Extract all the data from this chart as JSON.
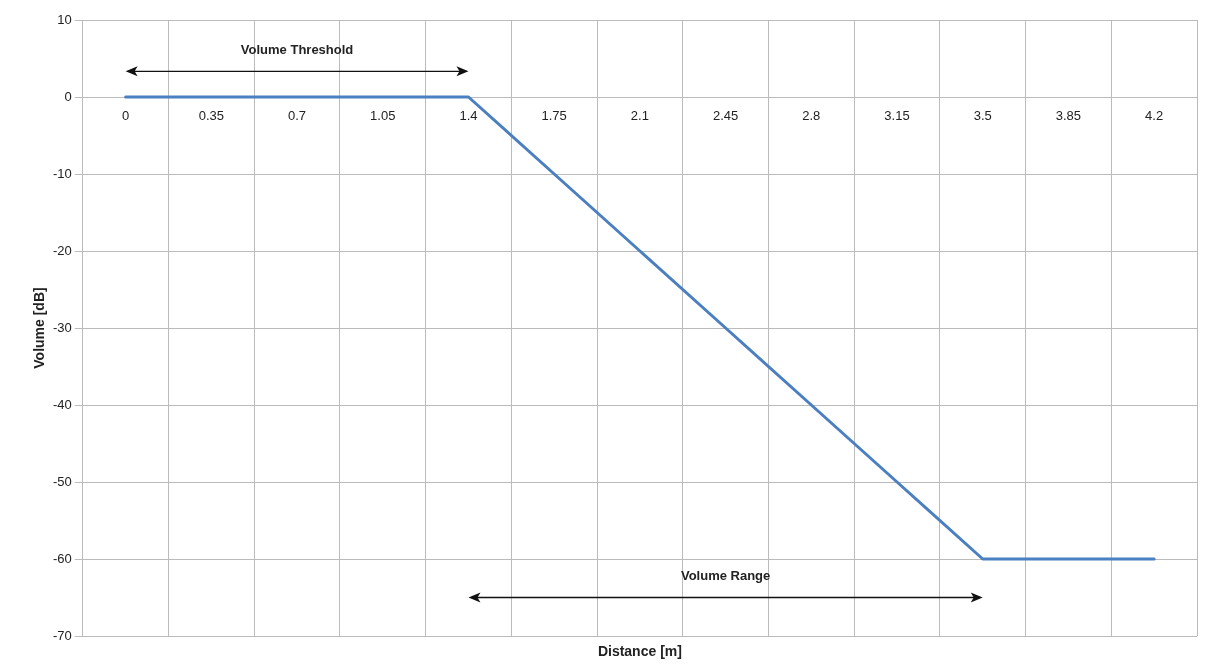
{
  "chart_data": {
    "type": "line",
    "xlabel": "Distance [m]",
    "ylabel": "Volume [dB]",
    "categories": [
      "0",
      "0.35",
      "0.7",
      "1.05",
      "1.4",
      "1.75",
      "2.1",
      "2.45",
      "2.8",
      "3.15",
      "3.5",
      "3.85",
      "4.2"
    ],
    "series": [
      {
        "color": "#4a7fc1",
        "values": [
          0,
          0,
          0,
          0,
          0,
          -10,
          -20,
          -30,
          -40,
          -50,
          -60,
          -60,
          -60
        ]
      }
    ],
    "ylim": [
      -70,
      10
    ],
    "yticks": [
      -70,
      -60,
      -50,
      -40,
      -30,
      -20,
      -10,
      0,
      10
    ],
    "grid": true,
    "legend": false,
    "marker": "none",
    "line_style": "solid",
    "annotations": [
      "Volume Threshold",
      "Volume Range"
    ]
  }
}
